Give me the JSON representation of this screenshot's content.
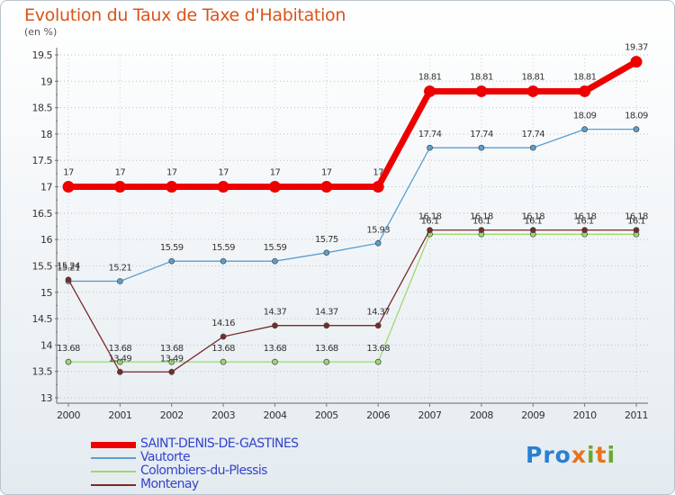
{
  "title": "Evolution du Taux de Taxe d'Habitation",
  "unit": "(en %)",
  "logo": {
    "text": "Proxiti",
    "letters": [
      "P",
      "r",
      "o",
      "x",
      "i",
      "t",
      "i"
    ],
    "colors": [
      "#2a7fd0",
      "#2a7fd0",
      "#2a7fd0",
      "#e8731a",
      "#6aa832",
      "#e8731a",
      "#6aa832"
    ]
  },
  "chart_data": {
    "type": "line",
    "title": "Evolution du Taux de Taxe d'Habitation",
    "ylabel": "(en %)",
    "xlabel": "",
    "x": [
      "2000",
      "2001",
      "2002",
      "2003",
      "2004",
      "2005",
      "2006",
      "2007",
      "2008",
      "2009",
      "2010",
      "2011"
    ],
    "ylim": [
      13,
      19.5
    ],
    "yticks": [
      "13",
      "13.5",
      "14",
      "14.5",
      "15",
      "15.5",
      "16",
      "16.5",
      "17",
      "17.5",
      "18",
      "18.5",
      "19",
      "19.5"
    ],
    "legend_position": "bottom-left",
    "series": [
      {
        "name": "SAINT-DENIS-DE-GASTINES",
        "color": "#ee0000",
        "values": [
          17,
          17,
          17,
          17,
          17,
          17,
          17,
          18.81,
          18.81,
          18.81,
          18.81,
          19.37
        ],
        "labels": [
          "17",
          "17",
          "17",
          "17",
          "17",
          "17",
          "17",
          "18.81",
          "18.81",
          "18.81",
          "18.81",
          "19.37"
        ]
      },
      {
        "name": "Vautorte",
        "color": "#5a9fd0",
        "values": [
          15.21,
          15.21,
          15.59,
          15.59,
          15.59,
          15.75,
          15.93,
          17.74,
          17.74,
          17.74,
          18.09,
          18.09
        ],
        "labels": [
          "15.21",
          "15.21",
          "15.59",
          "15.59",
          "15.59",
          "15.75",
          "15.93",
          "17.74",
          "17.74",
          "17.74",
          "18.09",
          "18.09"
        ]
      },
      {
        "name": "Colombiers-du-Plessis",
        "color": "#9ed870",
        "values": [
          13.68,
          13.68,
          13.68,
          13.68,
          13.68,
          13.68,
          13.68,
          16.1,
          16.1,
          16.1,
          16.1,
          16.1
        ],
        "labels": [
          "13.68",
          "13.68",
          "13.68",
          "13.68",
          "13.68",
          "13.68",
          "13.68",
          "16.1",
          "16.1",
          "16.1",
          "16.1",
          "16.1"
        ]
      },
      {
        "name": "Montenay",
        "color": "#7a2a2a",
        "values": [
          15.24,
          13.49,
          13.49,
          14.16,
          14.37,
          14.37,
          14.37,
          16.18,
          16.18,
          16.18,
          16.18,
          16.18
        ],
        "labels": [
          "15.24",
          "13.49",
          "13.49",
          "14.16",
          "14.37",
          "14.37",
          "14.37",
          "16.18",
          "16.18",
          "16.18",
          "16.18",
          "16.18"
        ]
      }
    ]
  }
}
